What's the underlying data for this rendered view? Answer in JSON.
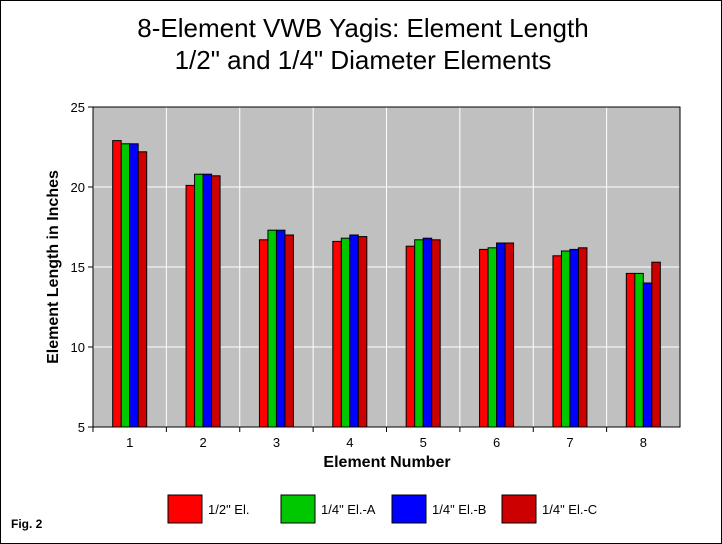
{
  "figure_label": "Fig. 2",
  "chart_data": {
    "type": "bar",
    "title": [
      "8-Element VWB Yagis:  Element Length",
      "1/2\" and 1/4\" Diameter Elements"
    ],
    "xlabel": "Element Number",
    "ylabel": "Element Length in Inches",
    "categories": [
      "1",
      "2",
      "3",
      "4",
      "5",
      "6",
      "7",
      "8"
    ],
    "ylim": [
      5,
      25
    ],
    "yticks": [
      5,
      10,
      15,
      20,
      25
    ],
    "grid": true,
    "legend_position": "bottom",
    "series": [
      {
        "name": "1/2\" El.",
        "color": "#ff0000",
        "values": [
          22.9,
          20.1,
          16.7,
          16.6,
          16.3,
          16.1,
          15.7,
          14.6
        ]
      },
      {
        "name": "1/4\" El.-A",
        "color": "#00c800",
        "values": [
          22.7,
          20.8,
          17.3,
          16.8,
          16.7,
          16.2,
          16.0,
          14.6
        ]
      },
      {
        "name": "1/4\" El.-B",
        "color": "#0000ff",
        "values": [
          22.7,
          20.8,
          17.3,
          17.0,
          16.8,
          16.5,
          16.1,
          14.0
        ]
      },
      {
        "name": "1/4\" El.-C",
        "color": "#cc0000",
        "values": [
          22.2,
          20.7,
          17.0,
          16.9,
          16.7,
          16.5,
          16.2,
          15.3
        ]
      }
    ]
  }
}
